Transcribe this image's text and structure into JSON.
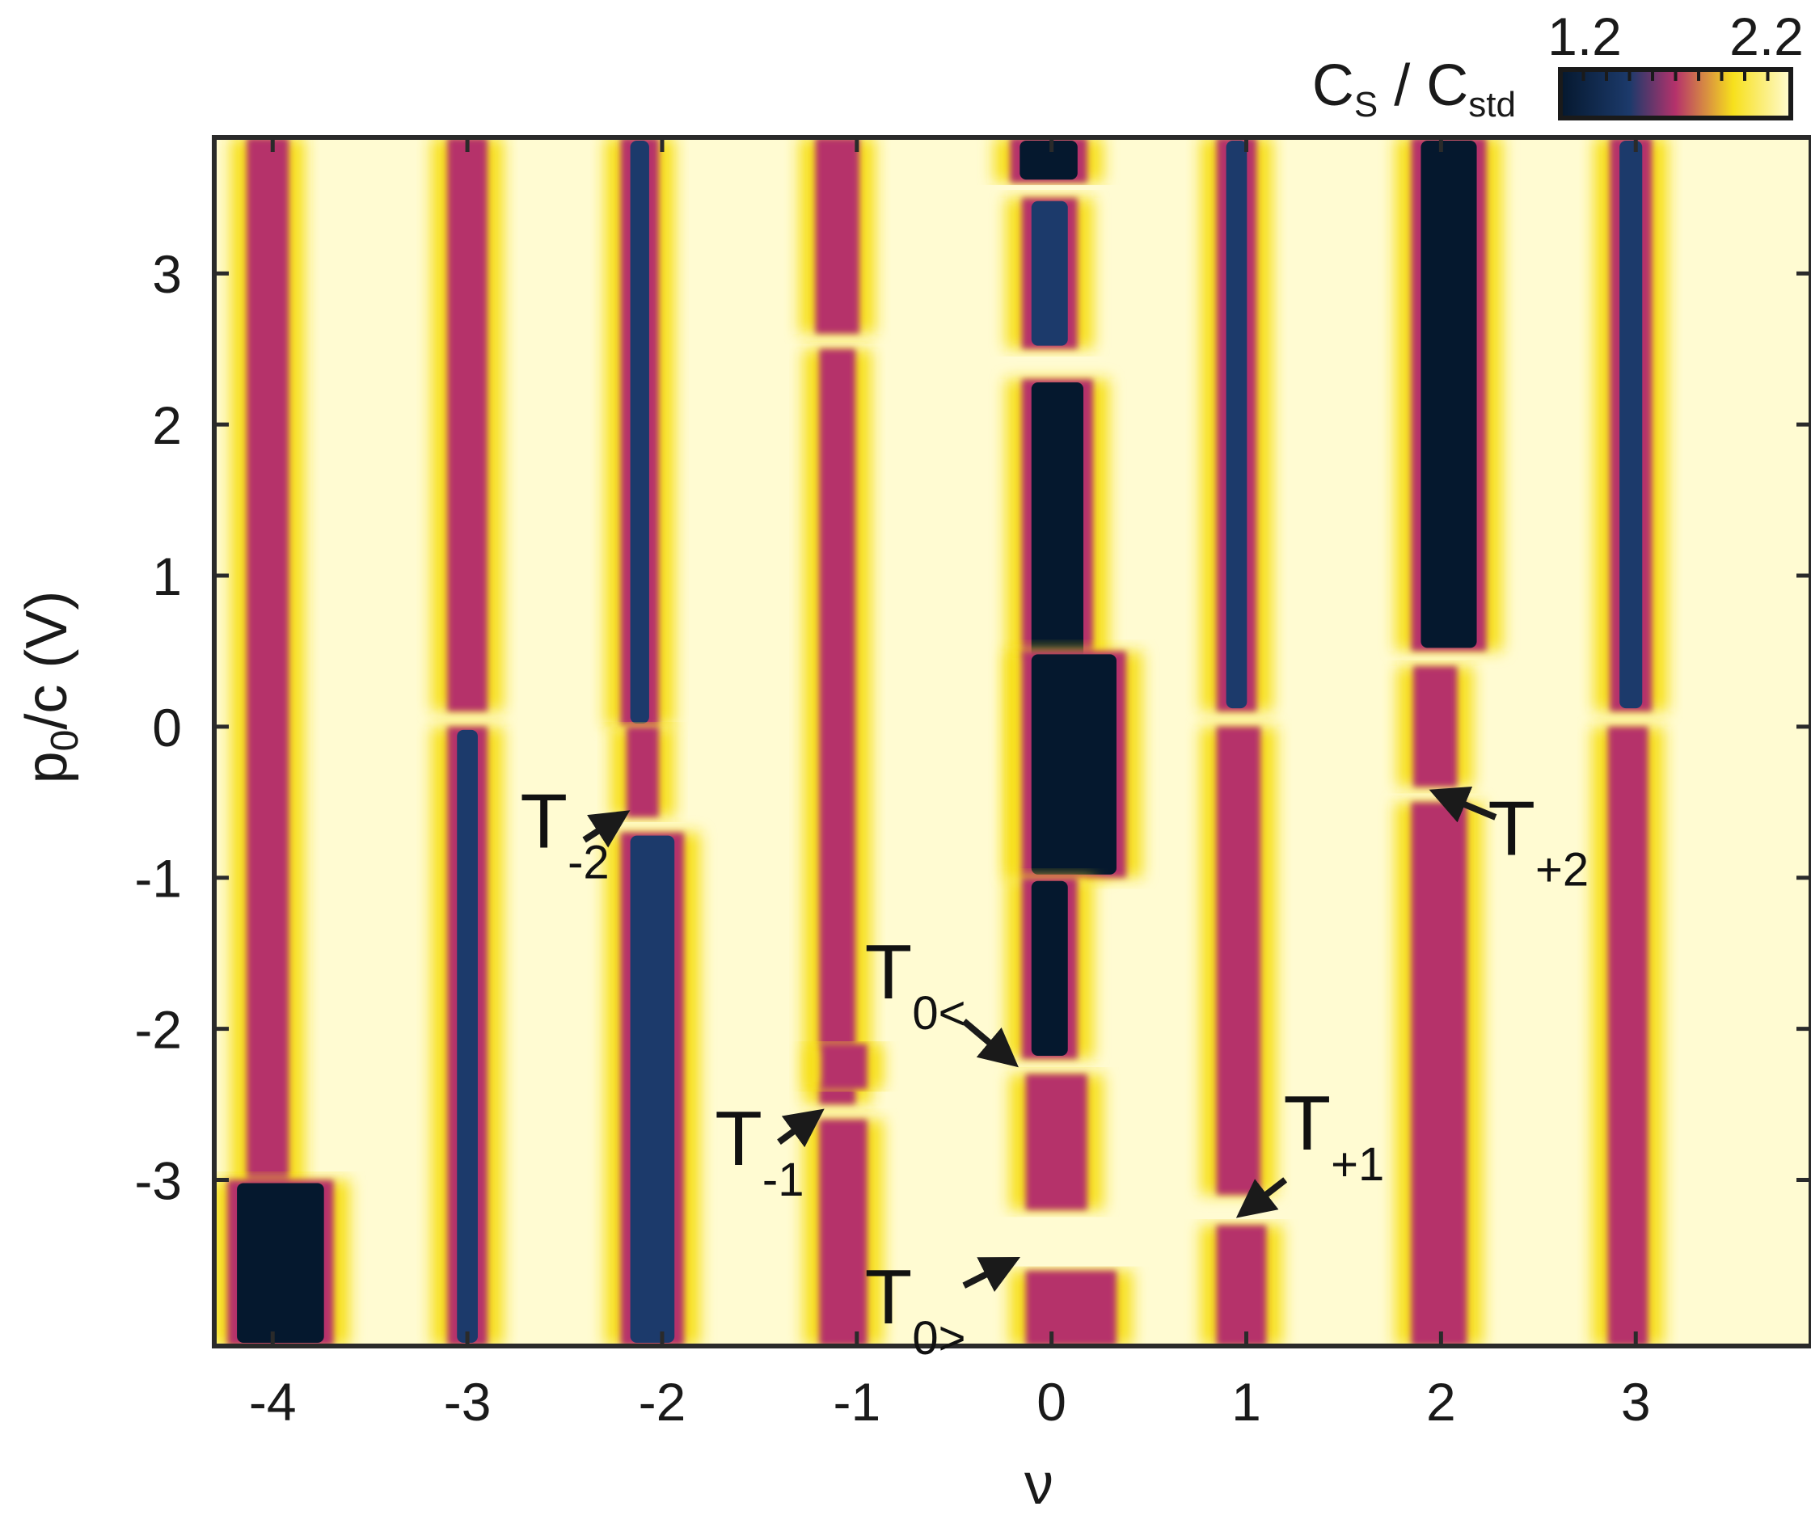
{
  "chart_data": {
    "type": "heatmap",
    "xlabel": "ν",
    "ylabel_main": "p",
    "ylabel_sub": "0",
    "ylabel_rest": "/c (V)",
    "xlim": [
      -4.3,
      3.9
    ],
    "ylim": [
      -4.1,
      3.9
    ],
    "xticks": [
      -4,
      -3,
      -2,
      -1,
      0,
      1,
      2,
      3
    ],
    "xtick_labels": [
      "-4",
      "-3",
      "-2",
      "-1",
      "0",
      "1",
      "2",
      "3"
    ],
    "yticks": [
      3,
      2,
      1,
      0,
      -1,
      -2,
      -3
    ],
    "ytick_labels": [
      "3",
      "2",
      "1",
      "0",
      "-1",
      "-2",
      "-3"
    ],
    "grid": false,
    "colorbar": {
      "label_main": "C",
      "label_sub1": "S",
      "label_sep": " / C",
      "label_sub2": "std",
      "min": 1.2,
      "max": 2.2,
      "min_label": "1.2",
      "max_label": "2.2",
      "placement": "top-right",
      "colors": [
        "#05182e",
        "#1c3a6b",
        "#b5326b",
        "#f7e01c",
        "#fffbd2"
      ]
    },
    "stripes": [
      {
        "nu": -4.0,
        "segments": [
          {
            "y0": -4.1,
            "y1": 3.9,
            "w_left": 0.1,
            "w_right": 0.05,
            "level": "magenta"
          },
          {
            "y0": -4.1,
            "y1": -3.0,
            "w_left": 0.2,
            "w_right": 0.28,
            "level": "dark"
          }
        ]
      },
      {
        "nu": -3.0,
        "segments": [
          {
            "y0": 0.1,
            "y1": 3.9,
            "w_left": 0.07,
            "w_right": 0.07,
            "level": "magenta"
          },
          {
            "y0": -4.1,
            "y1": 0.0,
            "w_left": 0.07,
            "w_right": 0.07,
            "level": "blue"
          }
        ]
      },
      {
        "nu": -2.1,
        "segments": [
          {
            "y0": 0.0,
            "y1": 3.9,
            "w_left": 0.08,
            "w_right": 0.05,
            "level": "blue"
          },
          {
            "y0": -0.6,
            "y1": 0.0,
            "w_left": 0.05,
            "w_right": 0.05,
            "level": "magenta"
          },
          {
            "y0": -4.1,
            "y1": -0.7,
            "w_left": 0.08,
            "w_right": 0.18,
            "level": "blue"
          }
        ]
      },
      {
        "nu": -1.1,
        "segments": [
          {
            "y0": 2.6,
            "y1": 3.9,
            "w_left": 0.08,
            "w_right": 0.08,
            "level": "magenta"
          },
          {
            "y0": -2.5,
            "y1": 2.5,
            "w_left": 0.06,
            "w_right": 0.06,
            "level": "magenta"
          },
          {
            "y0": -2.4,
            "y1": -2.1,
            "w_left": 0.05,
            "w_right": 0.12,
            "level": "magenta"
          },
          {
            "y0": -4.1,
            "y1": -2.6,
            "w_left": 0.06,
            "w_right": 0.12,
            "level": "magenta"
          }
        ]
      },
      {
        "nu": 0.0,
        "segments": [
          {
            "y0": 3.6,
            "y1": 3.9,
            "w_left": 0.18,
            "w_right": 0.15,
            "level": "dark"
          },
          {
            "y0": 2.5,
            "y1": 3.5,
            "w_left": 0.12,
            "w_right": 0.1,
            "level": "blue"
          },
          {
            "y0": -1.0,
            "y1": 2.3,
            "w_left": 0.12,
            "w_right": 0.18,
            "level": "dark"
          },
          {
            "y0": -1.0,
            "y1": 0.5,
            "w_left": 0.12,
            "w_right": 0.35,
            "level": "dark"
          },
          {
            "y0": -2.2,
            "y1": -1.0,
            "w_left": 0.12,
            "w_right": 0.1,
            "level": "dark"
          },
          {
            "y0": -3.2,
            "y1": -2.3,
            "w_left": 0.1,
            "w_right": 0.15,
            "level": "magenta"
          },
          {
            "y0": -4.1,
            "y1": -3.6,
            "w_left": 0.1,
            "w_right": 0.3,
            "level": "magenta"
          }
        ]
      },
      {
        "nu": 0.95,
        "segments": [
          {
            "y0": 0.1,
            "y1": 3.9,
            "w_left": 0.07,
            "w_right": 0.07,
            "level": "blue"
          },
          {
            "y0": -3.1,
            "y1": 0.0,
            "w_left": 0.07,
            "w_right": 0.09,
            "level": "magenta"
          },
          {
            "y0": -4.1,
            "y1": -3.3,
            "w_left": 0.07,
            "w_right": 0.12,
            "level": "magenta"
          }
        ]
      },
      {
        "nu": 1.95,
        "segments": [
          {
            "y0": 0.5,
            "y1": 3.9,
            "w_left": 0.07,
            "w_right": 0.25,
            "level": "dark"
          },
          {
            "y0": -0.4,
            "y1": 0.4,
            "w_left": 0.06,
            "w_right": 0.1,
            "level": "magenta"
          },
          {
            "y0": -4.1,
            "y1": -0.5,
            "w_left": 0.07,
            "w_right": 0.15,
            "level": "magenta"
          }
        ]
      },
      {
        "nu": 2.95,
        "segments": [
          {
            "y0": 0.1,
            "y1": 3.9,
            "w_left": 0.05,
            "w_right": 0.1,
            "level": "blue"
          },
          {
            "y0": -4.1,
            "y1": 0.0,
            "w_left": 0.06,
            "w_right": 0.08,
            "level": "magenta"
          }
        ]
      }
    ],
    "annotations": [
      {
        "main": "T",
        "sub": "-2",
        "x": -2.5,
        "y": -0.8,
        "arrow_from": [
          -2.4,
          -0.75
        ],
        "arrow_to": [
          -2.22,
          -0.6
        ]
      },
      {
        "main": "T",
        "sub": "-1",
        "x": -1.5,
        "y": -2.9,
        "arrow_from": [
          -1.4,
          -2.75
        ],
        "arrow_to": [
          -1.22,
          -2.58
        ]
      },
      {
        "main": "T",
        "sub": "0<",
        "x": -0.7,
        "y": -1.8,
        "arrow_from": [
          -0.45,
          -1.95
        ],
        "arrow_to": [
          -0.22,
          -2.2
        ]
      },
      {
        "main": "T",
        "sub": "0>",
        "x": -0.7,
        "y": -3.95,
        "arrow_from": [
          -0.45,
          -3.7
        ],
        "arrow_to": [
          -0.22,
          -3.55
        ]
      },
      {
        "main": "T",
        "sub": "+1",
        "x": 1.45,
        "y": -2.8,
        "arrow_from": [
          1.2,
          -3.0
        ],
        "arrow_to": [
          1.0,
          -3.2
        ]
      },
      {
        "main": "T",
        "sub": "+2",
        "x": 2.5,
        "y": -0.85,
        "arrow_from": [
          2.28,
          -0.6
        ],
        "arrow_to": [
          2.0,
          -0.45
        ]
      }
    ]
  }
}
